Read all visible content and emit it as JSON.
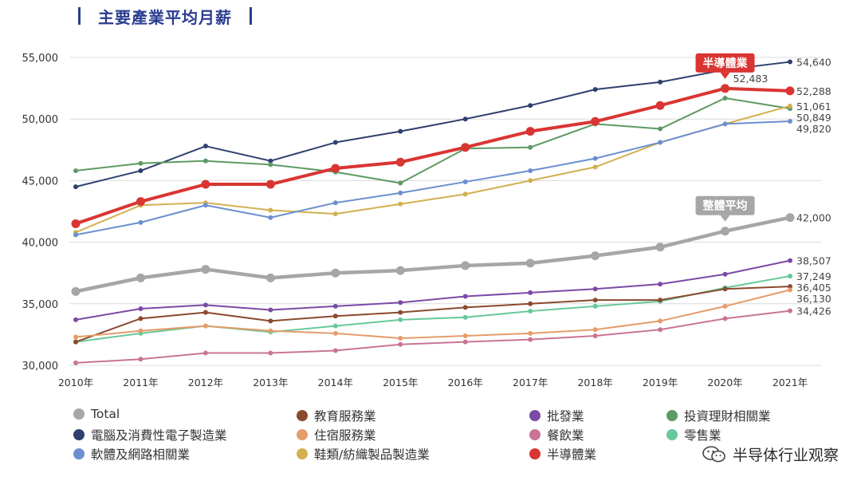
{
  "header": {
    "title": "主要產業平均月薪"
  },
  "chart_data": {
    "type": "line",
    "categories": [
      "2010年",
      "2011年",
      "2012年",
      "2013年",
      "2014年",
      "2015年",
      "2016年",
      "2017年",
      "2018年",
      "2019年",
      "2020年",
      "2021年"
    ],
    "ylim": [
      30000,
      55000
    ],
    "yticks": [
      "30,000",
      "35,000",
      "40,000",
      "45,000",
      "50,000",
      "55,000"
    ],
    "grid": true,
    "series": [
      {
        "name": "電腦及消費性電子製造業",
        "color": "#2f3f6e",
        "width": 2,
        "values": [
          44500,
          45800,
          47800,
          46600,
          48100,
          49000,
          50000,
          51100,
          52400,
          53000,
          54000,
          54640
        ],
        "end_label": "54,640"
      },
      {
        "name": "投資理財相關業",
        "color": "#5e9a63",
        "width": 2,
        "values": [
          45800,
          46400,
          46600,
          46300,
          45700,
          44800,
          47600,
          47700,
          49600,
          49200,
          51700,
          50849
        ],
        "end_label": "50,849"
      },
      {
        "name": "鞋類/紡織製品製造業",
        "color": "#d2b050",
        "width": 2,
        "values": [
          40800,
          43000,
          43200,
          42600,
          42300,
          43100,
          43900,
          45000,
          46100,
          48100,
          49600,
          51061
        ],
        "end_label": "51,061"
      },
      {
        "name": "軟體及網路相關業",
        "color": "#6c8fd0",
        "width": 2,
        "values": [
          40600,
          41600,
          43000,
          42000,
          43200,
          44000,
          44900,
          45800,
          46800,
          48100,
          49600,
          49820
        ],
        "end_label": "49,820"
      },
      {
        "name": "半導體業",
        "color": "#d93532",
        "width": 4,
        "values": [
          41500,
          43300,
          44700,
          44700,
          46000,
          46500,
          47700,
          49000,
          49800,
          51100,
          52483,
          52288
        ],
        "end_label": "52,288"
      },
      {
        "name": "Total",
        "color": "#a6a6a6",
        "width": 4.5,
        "values": [
          36000,
          37100,
          37800,
          37100,
          37500,
          37700,
          38100,
          38300,
          38900,
          39600,
          40900,
          42000
        ],
        "end_label": "42,000"
      },
      {
        "name": "批發業",
        "color": "#7a4aa5",
        "width": 2,
        "values": [
          33700,
          34600,
          34900,
          34500,
          34800,
          35100,
          35600,
          35900,
          36200,
          36600,
          37400,
          38507
        ],
        "end_label": "38,507"
      },
      {
        "name": "零售業",
        "color": "#67c89a",
        "width": 2,
        "values": [
          31900,
          32600,
          33200,
          32700,
          33200,
          33700,
          33900,
          34400,
          34800,
          35200,
          36300,
          37249
        ],
        "end_label": "37,249"
      },
      {
        "name": "教育服務業",
        "color": "#8a4a2d",
        "width": 2,
        "values": [
          31900,
          33800,
          34300,
          33600,
          34000,
          34300,
          34700,
          35000,
          35300,
          35300,
          36200,
          36405
        ],
        "end_label": "36,405"
      },
      {
        "name": "住宿服務業",
        "color": "#e49c6b",
        "width": 2,
        "values": [
          32300,
          32800,
          33200,
          32800,
          32600,
          32200,
          32400,
          32600,
          32900,
          33600,
          34800,
          36130
        ],
        "end_label": "36,130"
      },
      {
        "name": "餐飲業",
        "color": "#c97494",
        "width": 2,
        "values": [
          30200,
          30500,
          31000,
          31000,
          31200,
          31700,
          31900,
          32100,
          32400,
          32900,
          33800,
          34426
        ],
        "end_label": "34,426"
      }
    ],
    "callouts": [
      {
        "series": "半導體業",
        "label": "半導體業",
        "point_index": 10,
        "point_label": "52,483",
        "color": "#d93532"
      },
      {
        "series": "Total",
        "label": "整體平均",
        "point_index": 10,
        "color": "#a6a6a6"
      }
    ]
  },
  "legend": [
    {
      "name": "Total",
      "color": "#a6a6a6"
    },
    {
      "name": "教育服務業",
      "color": "#8a4a2d"
    },
    {
      "name": "批發業",
      "color": "#7a4aa5"
    },
    {
      "name": "投資理財相關業",
      "color": "#5e9a63"
    },
    {
      "name": "電腦及消費性電子製造業",
      "color": "#2f3f6e"
    },
    {
      "name": "住宿服務業",
      "color": "#e49c6b"
    },
    {
      "name": "餐飲業",
      "color": "#c97494"
    },
    {
      "name": "零售業",
      "color": "#67c89a"
    },
    {
      "name": "軟體及網路相關業",
      "color": "#6c8fd0"
    },
    {
      "name": "鞋類/紡織製品製造業",
      "color": "#d2b050"
    },
    {
      "name": "半導體業",
      "color": "#d93532"
    }
  ],
  "watermark": {
    "text": "半导体行业观察",
    "icon": "wechat-icon"
  }
}
